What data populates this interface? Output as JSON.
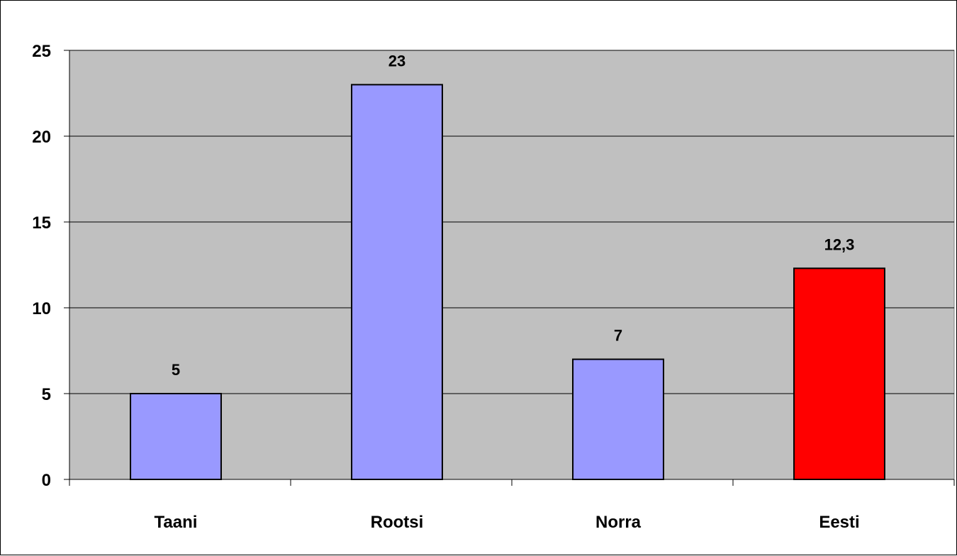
{
  "chart_data": {
    "type": "bar",
    "categories": [
      "Taani",
      "Rootsi",
      "Norra",
      "Eesti"
    ],
    "values": [
      5,
      23,
      7,
      12.3
    ],
    "data_labels": [
      "5",
      "23",
      "7",
      "12,3"
    ],
    "bar_colors": [
      "#9999FF",
      "#9999FF",
      "#9999FF",
      "#FF0000"
    ],
    "title": "",
    "xlabel": "",
    "ylabel": "",
    "ylim": [
      0,
      25
    ],
    "yticks": [
      0,
      5,
      10,
      15,
      20,
      25
    ],
    "grid": true,
    "plot_background": "#C0C0C0",
    "legend": "none"
  }
}
